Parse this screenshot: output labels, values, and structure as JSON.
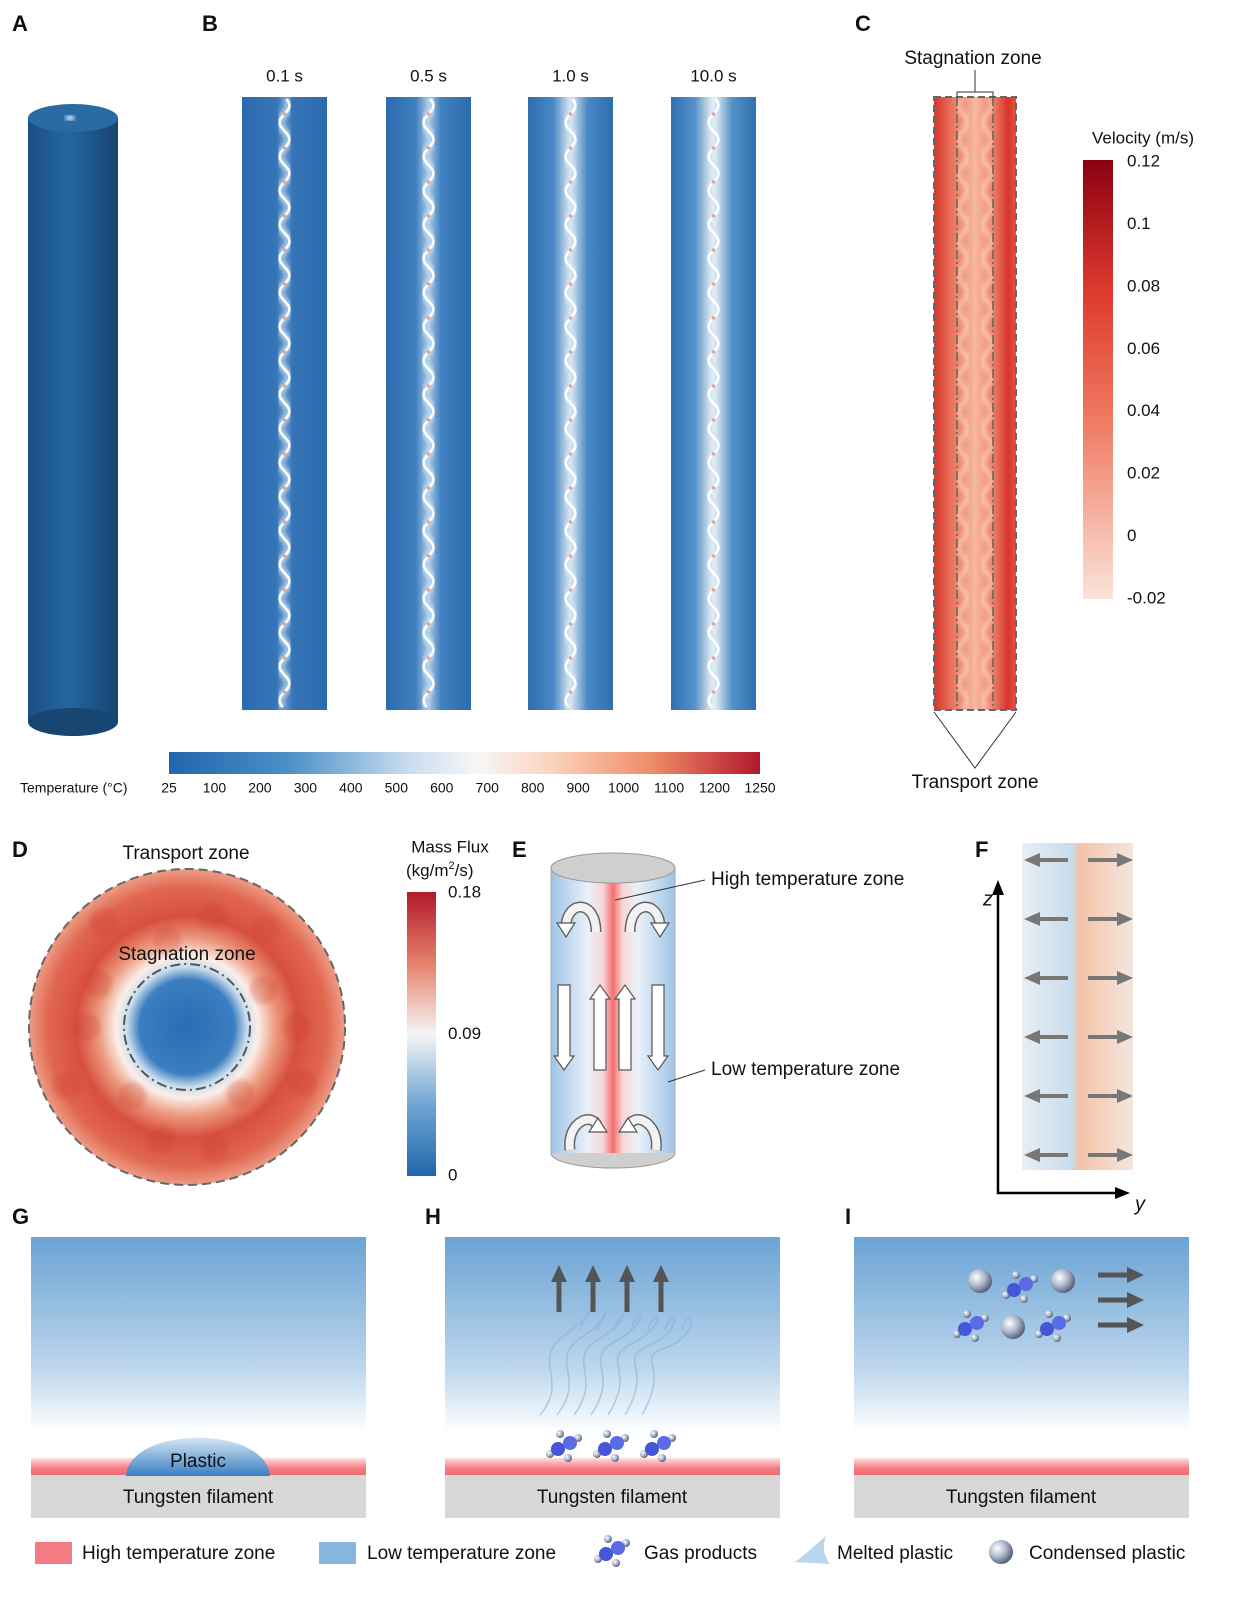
{
  "panel_labels": [
    "A",
    "B",
    "C",
    "D",
    "E",
    "F",
    "G",
    "H",
    "I"
  ],
  "panel_b": {
    "times": [
      "0.1 s",
      "0.5 s",
      "1.0 s",
      "10.0 s"
    ]
  },
  "temperature_scale": {
    "title": "Temperature (°C)",
    "ticks": [
      25,
      100,
      200,
      300,
      400,
      500,
      600,
      700,
      800,
      900,
      1000,
      1100,
      1200,
      1250
    ]
  },
  "panel_c": {
    "top_label": "Stagnation zone",
    "bottom_label": "Transport zone",
    "scale_title": "Velocity (m/s)",
    "ticks": [
      0.12,
      0.1,
      0.08,
      0.06,
      0.04,
      0.02,
      0,
      -0.02
    ]
  },
  "panel_d": {
    "outer_label": "Transport zone",
    "inner_label": "Stagnation zone",
    "scale_title": "Mass Flux",
    "scale_unit": {
      "before": "(kg/m",
      "superscript": "2",
      "after": "/s)"
    },
    "ticks": [
      0.18,
      0.09,
      0
    ]
  },
  "panel_e": {
    "high_label": "High temperature zone",
    "low_label": "Low temperature zone"
  },
  "panel_f": {
    "vertical_axis": "z",
    "horizontal_axis": "y"
  },
  "panel_g": {
    "substrate": "Tungsten filament",
    "droplet": "Plastic"
  },
  "panel_h": {
    "substrate": "Tungsten filament"
  },
  "panel_i": {
    "substrate": "Tungsten filament"
  },
  "legend": [
    "High temperature zone",
    "Low temperature zone",
    "Gas products",
    "Melted plastic",
    "Condensed plastic"
  ]
}
